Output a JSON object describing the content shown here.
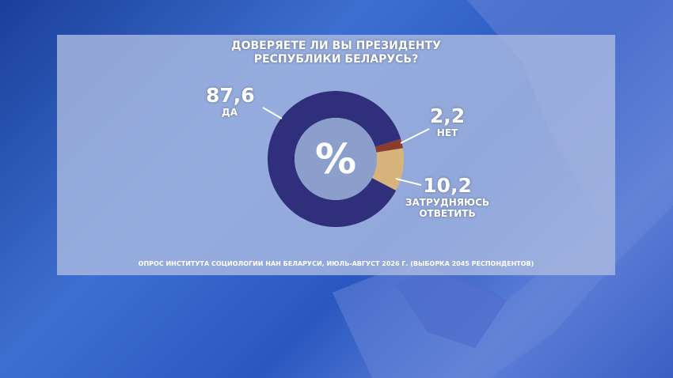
{
  "chart_data": {
    "type": "donut",
    "title": [
      "ДОВЕРЯЕТЕ ЛИ ВЫ ПРЕЗИДЕНТУ",
      "РЕСПУБЛИКИ БЕЛАРУСЬ?"
    ],
    "center_label": "%",
    "categories": [
      "ДА",
      "НЕТ",
      "ЗАТРУДНЯЮСЬ ОТВЕТИТЬ"
    ],
    "values": [
      87.6,
      2.2,
      10.2
    ],
    "value_labels": [
      "87,6",
      "2,2",
      "10,2"
    ],
    "colors": [
      "#2f2f7c",
      "#8a3d2c",
      "#d6b47c"
    ],
    "source": "ОПРОС ИНСТИТУТА СОЦИОЛОГИИ НАН БЕЛАРУСИ, ИЮЛЬ-АВГУСТ 2026 Г. (ВЫБОРКА 2045 РЕСПОНДЕНТОВ)"
  }
}
